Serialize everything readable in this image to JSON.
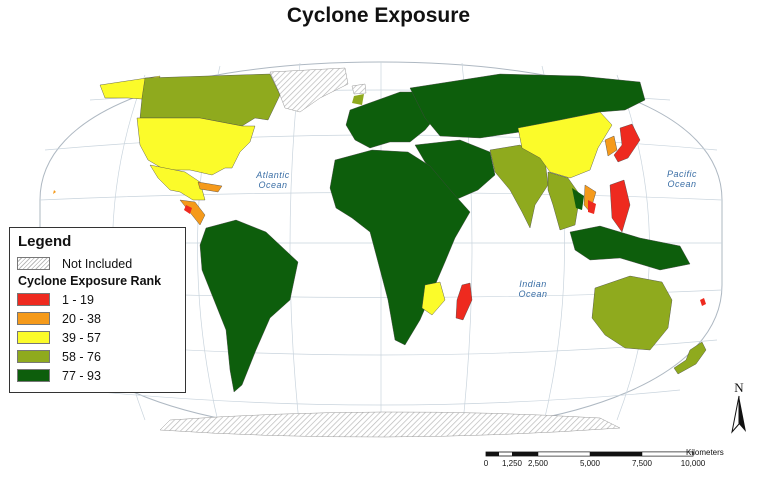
{
  "title": "Cyclone Exposure",
  "colors": {
    "rank_1_19": "#ee2a1f",
    "rank_20_38": "#f59a1b",
    "rank_39_57": "#fbfb2a",
    "rank_58_76": "#8faa1e",
    "rank_77_93": "#0d5e0c",
    "not_included_hatch": "#b9b9b9",
    "ocean_label": "#3a6ea5",
    "graticule": "#c9d4dd"
  },
  "oceans": {
    "atlantic": [
      "Atlantic",
      "Ocean"
    ],
    "pacific": [
      "Pacific",
      "Ocean"
    ],
    "indian": [
      "Indian",
      "Ocean"
    ]
  },
  "legend": {
    "title": "Legend",
    "not_included": "Not Included",
    "rank_title": "Cyclone Exposure Rank",
    "classes": [
      {
        "label": "1 - 19",
        "color": "#ee2a1f"
      },
      {
        "label": "20 - 38",
        "color": "#f59a1b"
      },
      {
        "label": "39 - 57",
        "color": "#fbfb2a"
      },
      {
        "label": "58 - 76",
        "color": "#8faa1e"
      },
      {
        "label": "77 - 93",
        "color": "#0d5e0c"
      }
    ]
  },
  "north_arrow": {
    "letter": "N",
    "icon": "north-arrow-icon"
  },
  "scale_bar": {
    "unit": "Kilometers",
    "ticks": [
      "0",
      "1,250",
      "2,500",
      "5,000",
      "7,500",
      "10,000"
    ]
  }
}
